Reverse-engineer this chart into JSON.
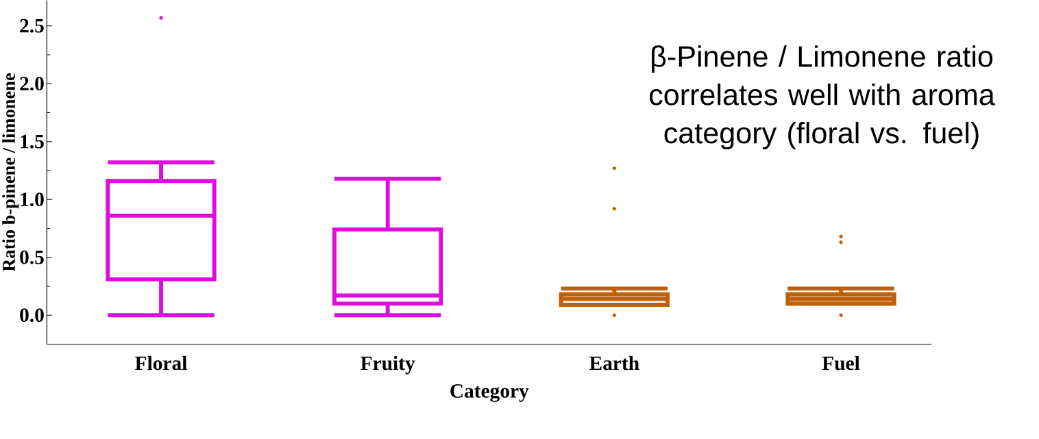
{
  "chart_data": {
    "type": "box",
    "categories": [
      "Floral",
      "Fruity",
      "Earth",
      "Fuel"
    ],
    "xlabel": "Category",
    "ylabel": "Ratio b-pinene / limonene",
    "annotations": [
      "β-Pinene / Limonene ratio correlates well with aroma category (floral vs. fuel)"
    ],
    "colors": [
      "#dd0ddd",
      "#dd0ddd",
      "#c05f05",
      "#c05f05"
    ],
    "boxes": [
      {
        "low": 0.0,
        "q1": 0.31,
        "median": 0.86,
        "q3": 1.16,
        "high": 1.32,
        "outliers": [
          2.57
        ]
      },
      {
        "low": 0.0,
        "q1": 0.1,
        "median": 0.17,
        "q3": 0.74,
        "high": 1.18
      },
      {
        "low": 0.09,
        "q1": 0.09,
        "median": 0.14,
        "q3": 0.18,
        "high": 0.23,
        "outliers": [
          1.27,
          0.92,
          0.0
        ]
      },
      {
        "low": 0.1,
        "q1": 0.1,
        "median": 0.14,
        "q3": 0.18,
        "high": 0.23,
        "outliers": [
          0.68,
          0.63,
          0.0
        ]
      }
    ],
    "ylim": [
      -0.25,
      2.72
    ],
    "yticks": [
      {
        "value": 0,
        "label": "0.0"
      },
      0.5,
      {
        "value": 1,
        "label": "1.0"
      },
      1.5,
      {
        "value": 2,
        "label": "2.0"
      },
      2.5
    ]
  }
}
